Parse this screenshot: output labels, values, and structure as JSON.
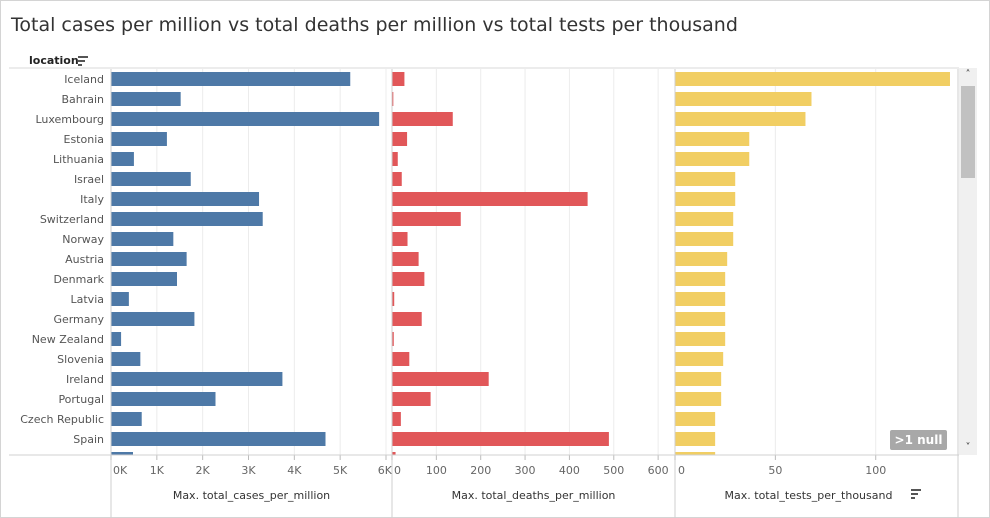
{
  "title": "Total cases per million vs total deaths per million vs total tests per thousand",
  "location_header": "location",
  "null_badge": ">1 null",
  "chart_data": {
    "type": "bar",
    "orientation": "horizontal",
    "categories": [
      "Iceland",
      "Bahrain",
      "Luxembourg",
      "Estonia",
      "Lithuania",
      "Israel",
      "Italy",
      "Switzerland",
      "Norway",
      "Austria",
      "Denmark",
      "Latvia",
      "Germany",
      "New Zealand",
      "Slovenia",
      "Ireland",
      "Portugal",
      "Czech Republic",
      "Spain",
      ""
    ],
    "panels": [
      {
        "name": "Max. total_cases_per_million",
        "color": "#4e79a7",
        "xlim": [
          0,
          6000
        ],
        "ticks": [
          0,
          1000,
          2000,
          3000,
          4000,
          5000,
          6000
        ],
        "tick_labels": [
          "0K",
          "1K",
          "2K",
          "3K",
          "4K",
          "5K",
          "6K"
        ],
        "values": [
          5220,
          1520,
          5850,
          1220,
          500,
          1740,
          3230,
          3310,
          1360,
          1650,
          1440,
          390,
          1820,
          220,
          640,
          3740,
          2280,
          670,
          4680,
          480
        ]
      },
      {
        "name": "Max. total_deaths_per_million",
        "color": "#e15759",
        "xlim": [
          0,
          620
        ],
        "ticks": [
          0,
          100,
          200,
          300,
          400,
          500,
          600
        ],
        "tick_labels": [
          "0",
          "100",
          "200",
          "300",
          "400",
          "500",
          "600"
        ],
        "values": [
          28,
          3,
          137,
          34,
          13,
          22,
          441,
          155,
          35,
          60,
          73,
          5,
          67,
          4,
          39,
          218,
          87,
          20,
          489,
          8
        ]
      },
      {
        "name": "Max. total_tests_per_thousand",
        "color": "#f1ce63",
        "xlim": [
          0,
          140
        ],
        "ticks": [
          0,
          50,
          100
        ],
        "tick_labels": [
          "0",
          "50",
          "100"
        ],
        "values": [
          137,
          68,
          65,
          37,
          37,
          30,
          30,
          29,
          29,
          26,
          25,
          25,
          25,
          25,
          24,
          23,
          23,
          20,
          20,
          20
        ]
      }
    ]
  }
}
